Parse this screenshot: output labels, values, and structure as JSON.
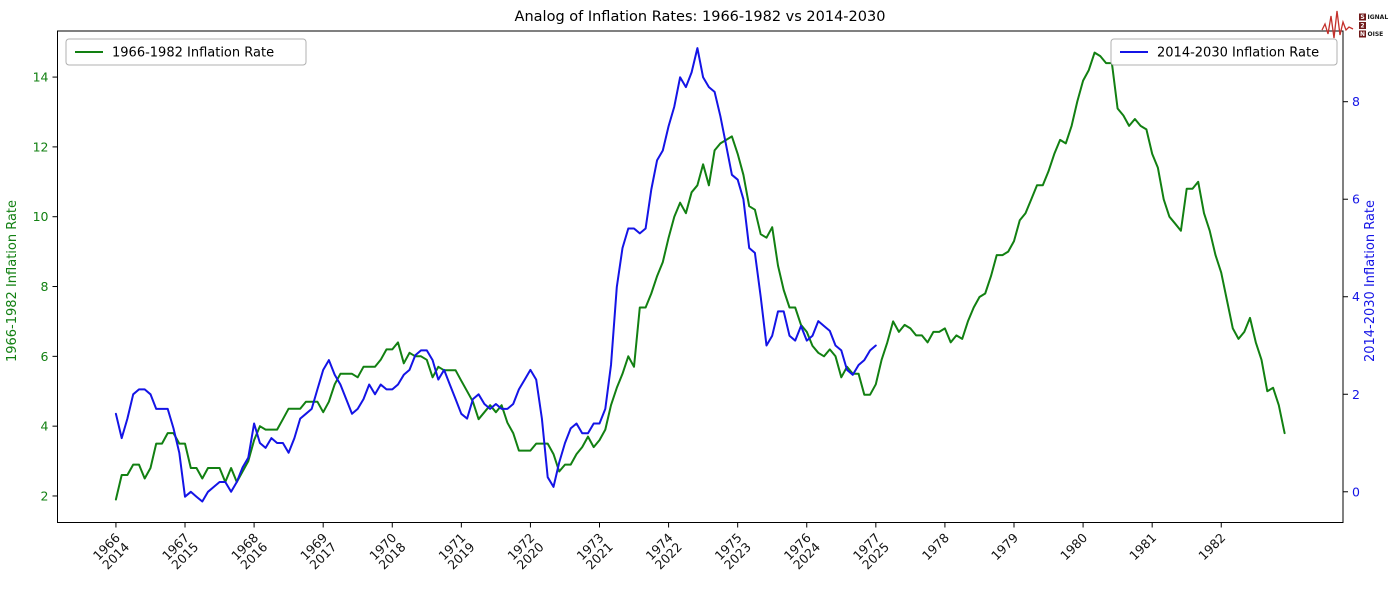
{
  "title": "Analog of Inflation Rates: 1966-1982 vs 2014-2030",
  "logo": {
    "word1_first": "S",
    "word1_rest": "IGNAL",
    "word2": "2",
    "word3_first": "N",
    "word3_rest": "OISE",
    "waveform_color": "#c4302b",
    "box_color": "#701a1a"
  },
  "chart_data": {
    "type": "line",
    "title": "Analog of Inflation Rates: 1966-1982 vs 2014-2030",
    "grid": false,
    "left_axis": {
      "label": "1966-1982 Inflation Rate",
      "color": "#128012",
      "ticks": [
        2,
        4,
        6,
        8,
        10,
        12,
        14
      ],
      "ylim": [
        1.24,
        15.32
      ]
    },
    "right_axis": {
      "label": "2014-2030 Inflation Rate",
      "color": "#1414e6",
      "ticks": [
        0,
        2,
        4,
        6,
        8
      ],
      "ylim": [
        -0.63,
        9.45
      ]
    },
    "x_axis": {
      "xlim_months": [
        -10.15,
        213.15
      ],
      "tick_positions_months": [
        0,
        12,
        24,
        36,
        48,
        60,
        72,
        84,
        96,
        108,
        120,
        132,
        144,
        156,
        168,
        180,
        192
      ],
      "tick_labels": [
        [
          "1966",
          "2014"
        ],
        [
          "1967",
          "2015"
        ],
        [
          "1968",
          "2016"
        ],
        [
          "1969",
          "2017"
        ],
        [
          "1970",
          "2018"
        ],
        [
          "1971",
          "2019"
        ],
        [
          "1972",
          "2020"
        ],
        [
          "1973",
          "2021"
        ],
        [
          "1974",
          "2022"
        ],
        [
          "1975",
          "2023"
        ],
        [
          "1976",
          "2024"
        ],
        [
          "1977",
          "2025"
        ],
        [
          "1978"
        ],
        [
          "1979"
        ],
        [
          "1980"
        ],
        [
          "1981"
        ],
        [
          "1982"
        ]
      ]
    },
    "legend": [
      {
        "label": "1966-1982 Inflation Rate",
        "position": "upper left",
        "color": "#128012"
      },
      {
        "label": "2014-2030 Inflation Rate",
        "position": "upper right",
        "color": "#1414e6"
      }
    ],
    "series": [
      {
        "name": "1966-1982 Inflation Rate",
        "axis": "left",
        "color": "#128012",
        "start": "1966-01",
        "freq": "monthly",
        "values": [
          1.9,
          2.6,
          2.6,
          2.9,
          2.9,
          2.5,
          2.8,
          3.5,
          3.5,
          3.8,
          3.8,
          3.5,
          3.5,
          2.8,
          2.8,
          2.5,
          2.8,
          2.8,
          2.8,
          2.4,
          2.8,
          2.4,
          2.7,
          3.0,
          3.6,
          4.0,
          3.9,
          3.9,
          3.9,
          4.2,
          4.5,
          4.5,
          4.5,
          4.7,
          4.7,
          4.7,
          4.4,
          4.7,
          5.2,
          5.5,
          5.5,
          5.5,
          5.4,
          5.7,
          5.7,
          5.7,
          5.9,
          6.2,
          6.2,
          6.4,
          5.8,
          6.1,
          6.0,
          6.0,
          5.9,
          5.4,
          5.7,
          5.6,
          5.6,
          5.6,
          5.3,
          5.0,
          4.7,
          4.2,
          4.4,
          4.6,
          4.4,
          4.6,
          4.1,
          3.8,
          3.3,
          3.3,
          3.3,
          3.5,
          3.5,
          3.5,
          3.2,
          2.7,
          2.9,
          2.9,
          3.2,
          3.4,
          3.7,
          3.4,
          3.6,
          3.9,
          4.6,
          5.1,
          5.5,
          6.0,
          5.7,
          7.4,
          7.4,
          7.8,
          8.3,
          8.7,
          9.4,
          10.0,
          10.4,
          10.1,
          10.7,
          10.9,
          11.5,
          10.9,
          11.9,
          12.1,
          12.2,
          12.3,
          11.8,
          11.2,
          10.3,
          10.2,
          9.5,
          9.4,
          9.7,
          8.6,
          7.9,
          7.4,
          7.4,
          6.9,
          6.7,
          6.3,
          6.1,
          6.0,
          6.2,
          6.0,
          5.4,
          5.7,
          5.5,
          5.5,
          4.9,
          4.9,
          5.2,
          5.9,
          6.4,
          7.0,
          6.7,
          6.9,
          6.8,
          6.6,
          6.6,
          6.4,
          6.7,
          6.7,
          6.8,
          6.4,
          6.6,
          6.5,
          7.0,
          7.4,
          7.7,
          7.8,
          8.3,
          8.9,
          8.9,
          9.0,
          9.3,
          9.9,
          10.1,
          10.5,
          10.9,
          10.9,
          11.3,
          11.8,
          12.2,
          12.1,
          12.6,
          13.3,
          13.9,
          14.2,
          14.7,
          14.6,
          14.4,
          14.4,
          13.1,
          12.9,
          12.6,
          12.8,
          12.6,
          12.5,
          11.8,
          11.4,
          10.5,
          10.0,
          9.8,
          9.6,
          10.8,
          10.8,
          11.0,
          10.1,
          9.6,
          8.9,
          8.4,
          7.6,
          6.8,
          6.5,
          6.7,
          7.1,
          6.4,
          5.9,
          5.0,
          5.1,
          4.6,
          3.8
        ]
      },
      {
        "name": "2014-2030 Inflation Rate",
        "axis": "right",
        "color": "#1414e6",
        "start": "2014-01",
        "freq": "monthly",
        "values": [
          1.6,
          1.1,
          1.5,
          2.0,
          2.1,
          2.1,
          2.0,
          1.7,
          1.7,
          1.7,
          1.3,
          0.8,
          -0.1,
          0.0,
          -0.1,
          -0.2,
          0.0,
          0.1,
          0.2,
          0.2,
          0.0,
          0.2,
          0.5,
          0.7,
          1.4,
          1.0,
          0.9,
          1.1,
          1.0,
          1.0,
          0.8,
          1.1,
          1.5,
          1.6,
          1.7,
          2.1,
          2.5,
          2.7,
          2.4,
          2.2,
          1.9,
          1.6,
          1.7,
          1.9,
          2.2,
          2.0,
          2.2,
          2.1,
          2.1,
          2.2,
          2.4,
          2.5,
          2.8,
          2.9,
          2.9,
          2.7,
          2.3,
          2.5,
          2.2,
          1.9,
          1.6,
          1.5,
          1.9,
          2.0,
          1.8,
          1.7,
          1.8,
          1.7,
          1.7,
          1.8,
          2.1,
          2.3,
          2.5,
          2.3,
          1.5,
          0.3,
          0.1,
          0.6,
          1.0,
          1.3,
          1.4,
          1.2,
          1.2,
          1.4,
          1.4,
          1.7,
          2.6,
          4.2,
          5.0,
          5.4,
          5.4,
          5.3,
          5.4,
          6.2,
          6.8,
          7.0,
          7.5,
          7.9,
          8.5,
          8.3,
          8.6,
          9.1,
          8.5,
          8.3,
          8.2,
          7.7,
          7.1,
          6.5,
          6.4,
          6.0,
          5.0,
          4.9,
          4.0,
          3.0,
          3.2,
          3.7,
          3.7,
          3.2,
          3.1,
          3.4,
          3.1,
          3.2,
          3.5,
          3.4,
          3.3,
          3.0,
          2.9,
          2.5,
          2.4,
          2.6,
          2.7,
          2.9,
          3.0
        ]
      }
    ]
  }
}
